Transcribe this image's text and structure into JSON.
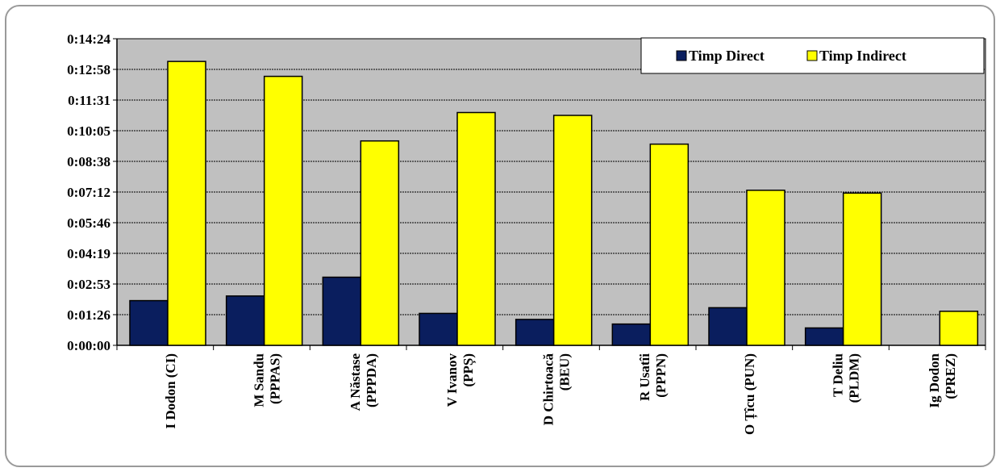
{
  "chart_data": {
    "type": "bar",
    "title": "",
    "xlabel": "",
    "ylabel": "",
    "categories": [
      [
        "I Dodon (CI)"
      ],
      [
        "M Sandu",
        "(PPPAS)"
      ],
      [
        "A Năstase",
        "(PPPDA)"
      ],
      [
        "V Ivanov",
        "(PPȘ)"
      ],
      [
        "D Chirtoacă",
        "(BEU)"
      ],
      [
        "R Usatîi",
        "(PPPN)"
      ],
      [
        "O Țîcu (PUN)"
      ],
      [
        "T Deliu",
        "(PLDM)"
      ],
      [
        "Ig Dodon",
        "(PREZ)"
      ]
    ],
    "series": [
      {
        "name": "Timp Direct",
        "color": "#0a1e5e",
        "values": [
          126,
          139,
          192,
          90,
          73,
          60,
          106,
          49,
          0
        ]
      },
      {
        "name": "Timp Indirect",
        "color": "#ffff00",
        "values": [
          800,
          758,
          576,
          656,
          648,
          567,
          437,
          429,
          96
        ]
      }
    ],
    "y_ticks": [
      "0:00:00",
      "0:01:26",
      "0:02:53",
      "0:04:19",
      "0:05:46",
      "0:07:12",
      "0:08:38",
      "0:10:05",
      "0:11:31",
      "0:12:58",
      "0:14:24"
    ],
    "ylim": [
      0,
      864
    ],
    "y_unit": "seconds",
    "legend_position": "top-right",
    "grid": true,
    "plot_background": "#c0c0c0"
  }
}
